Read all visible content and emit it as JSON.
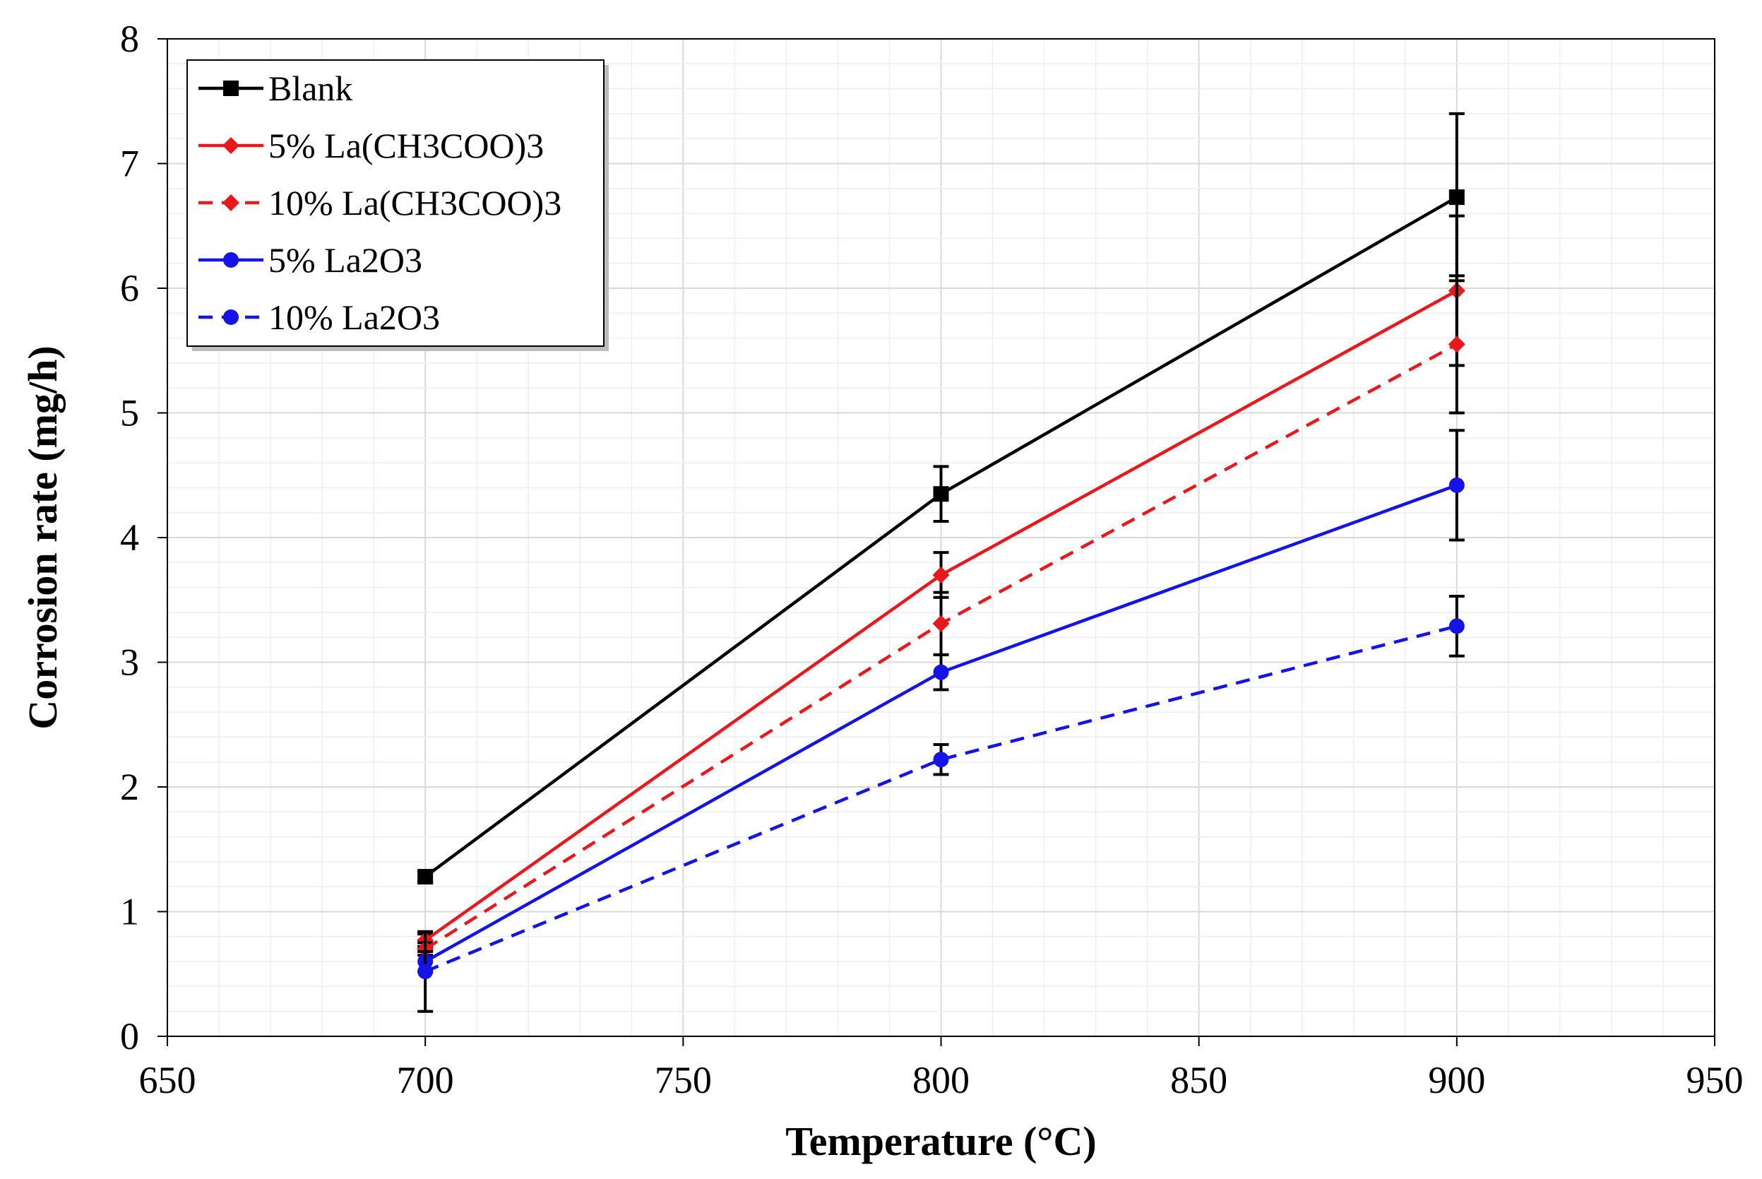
{
  "chart_data": {
    "type": "line",
    "title": "",
    "xlabel": "Temperature (°C)",
    "ylabel": "Corrosion rate (mg/h)",
    "xlim": [
      650,
      950
    ],
    "ylim": [
      0,
      8
    ],
    "x_ticks": [
      650,
      700,
      750,
      800,
      850,
      900,
      950
    ],
    "y_ticks": [
      0,
      1,
      2,
      3,
      4,
      5,
      6,
      7,
      8
    ],
    "grid": true,
    "legend_position": "top-left",
    "x": [
      700,
      800,
      900
    ],
    "series": [
      {
        "name": "Blank",
        "values": [
          1.28,
          4.35,
          6.73
        ],
        "errors": [
          0.04,
          0.22,
          0.67
        ],
        "color": "#000000",
        "dashed": false,
        "marker": "square"
      },
      {
        "name": "5% La(CH3COO)3",
        "values": [
          0.77,
          3.7,
          5.98
        ],
        "errors": [
          0.05,
          0.18,
          0.6
        ],
        "color": "#e8191c",
        "dashed": false,
        "marker": "diamond"
      },
      {
        "name": "10% La(CH3COO)3",
        "values": [
          0.7,
          3.31,
          5.55
        ],
        "errors": [
          0.05,
          0.25,
          0.55
        ],
        "color": "#e8191c",
        "dashed": true,
        "marker": "diamond"
      },
      {
        "name": "5% La2O3",
        "values": [
          0.6,
          2.92,
          4.42
        ],
        "errors": [
          0.08,
          0.14,
          0.44
        ],
        "color": "#1414e6",
        "dashed": false,
        "marker": "circle"
      },
      {
        "name": "10% La2O3",
        "values": [
          0.52,
          2.22,
          3.29
        ],
        "errors": [
          0.32,
          0.12,
          0.24
        ],
        "color": "#1414e6",
        "dashed": true,
        "marker": "circle"
      }
    ]
  }
}
